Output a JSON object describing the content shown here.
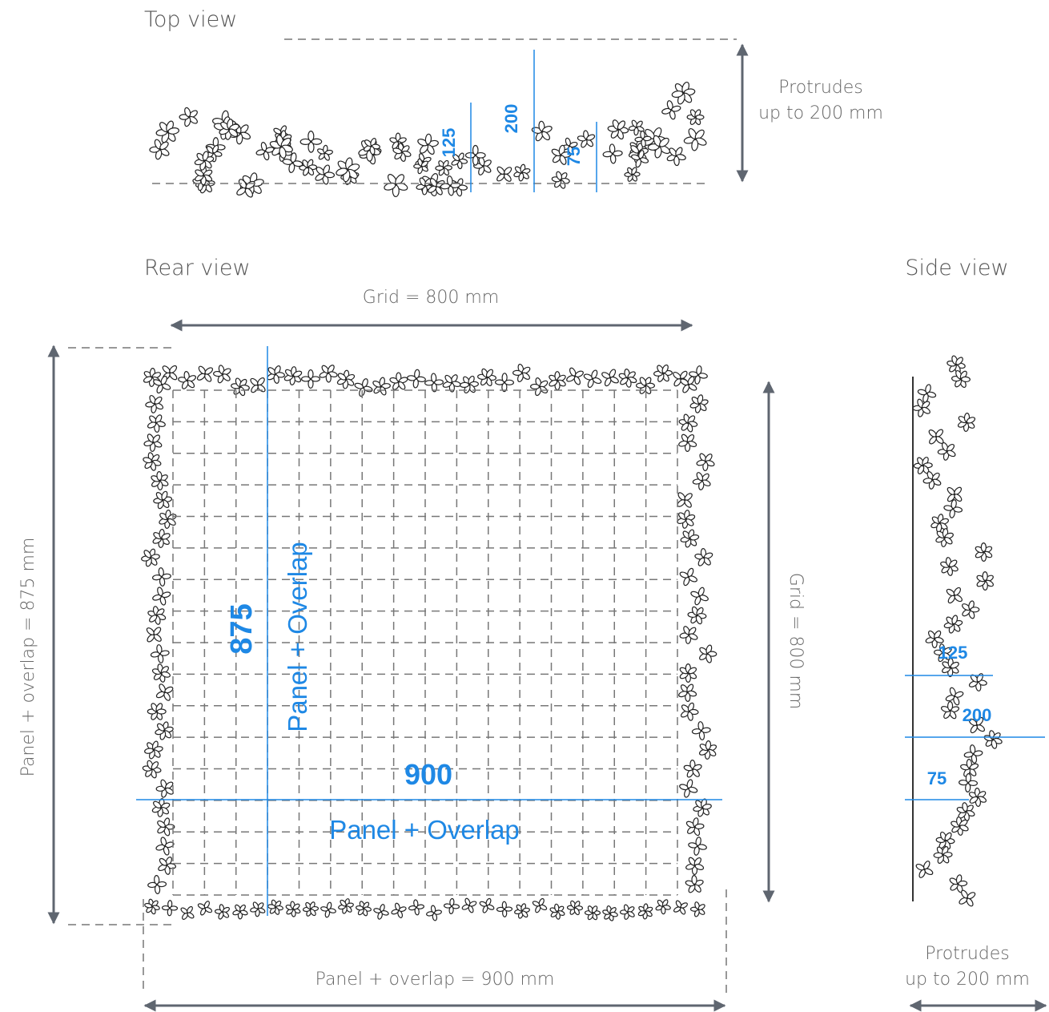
{
  "top_view": {
    "title": "Top view",
    "note": [
      "Protrudes",
      "up to 200 mm"
    ],
    "dimensions": [
      125,
      200,
      75
    ]
  },
  "rear_view": {
    "title": "Rear view",
    "grid_width": "Grid = 800 mm",
    "grid_height": "Grid = 800 mm",
    "panel_height": "Panel + overlap = 875 mm",
    "panel_width": "Panel + overlap = 900 mm",
    "height_value": 875,
    "height_label": "Panel + Overlap",
    "width_value": 900,
    "width_label": "Panel + Overlap"
  },
  "side_view": {
    "title": "Side view",
    "dimensions": [
      125,
      200,
      75
    ],
    "note": [
      "Protrudes",
      "up to 200 mm"
    ]
  }
}
